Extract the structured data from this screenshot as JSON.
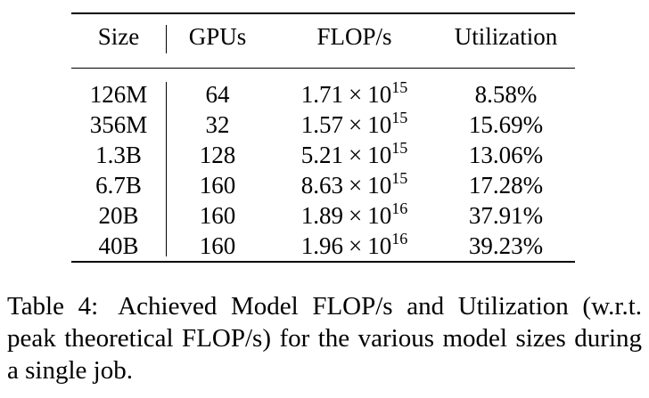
{
  "table": {
    "headers": {
      "size": "Size",
      "gpus": "GPUs",
      "flops": "FLOP/s",
      "utilization": "Utilization"
    },
    "rows": [
      {
        "size": "126M",
        "gpus": "64",
        "flops_mantissa": "1.71",
        "flops_times": "×",
        "flops_base": "10",
        "flops_exp": "15",
        "utilization": "8.58%"
      },
      {
        "size": "356M",
        "gpus": "32",
        "flops_mantissa": "1.57",
        "flops_times": "×",
        "flops_base": "10",
        "flops_exp": "15",
        "utilization": "15.69%"
      },
      {
        "size": "1.3B",
        "gpus": "128",
        "flops_mantissa": "5.21",
        "flops_times": "×",
        "flops_base": "10",
        "flops_exp": "15",
        "utilization": "13.06%"
      },
      {
        "size": "6.7B",
        "gpus": "160",
        "flops_mantissa": "8.63",
        "flops_times": "×",
        "flops_base": "10",
        "flops_exp": "15",
        "utilization": "17.28%"
      },
      {
        "size": "20B",
        "gpus": "160",
        "flops_mantissa": "1.89",
        "flops_times": "×",
        "flops_base": "10",
        "flops_exp": "16",
        "utilization": "37.91%"
      },
      {
        "size": "40B",
        "gpus": "160",
        "flops_mantissa": "1.96",
        "flops_times": "×",
        "flops_base": "10",
        "flops_exp": "16",
        "utilization": "39.23%"
      }
    ]
  },
  "caption": {
    "label": "Table 4:",
    "text": "Achieved Model FLOP/s and Utilization (w.r.t. peak theoretical FLOP/s) for the various model sizes during a single job."
  }
}
